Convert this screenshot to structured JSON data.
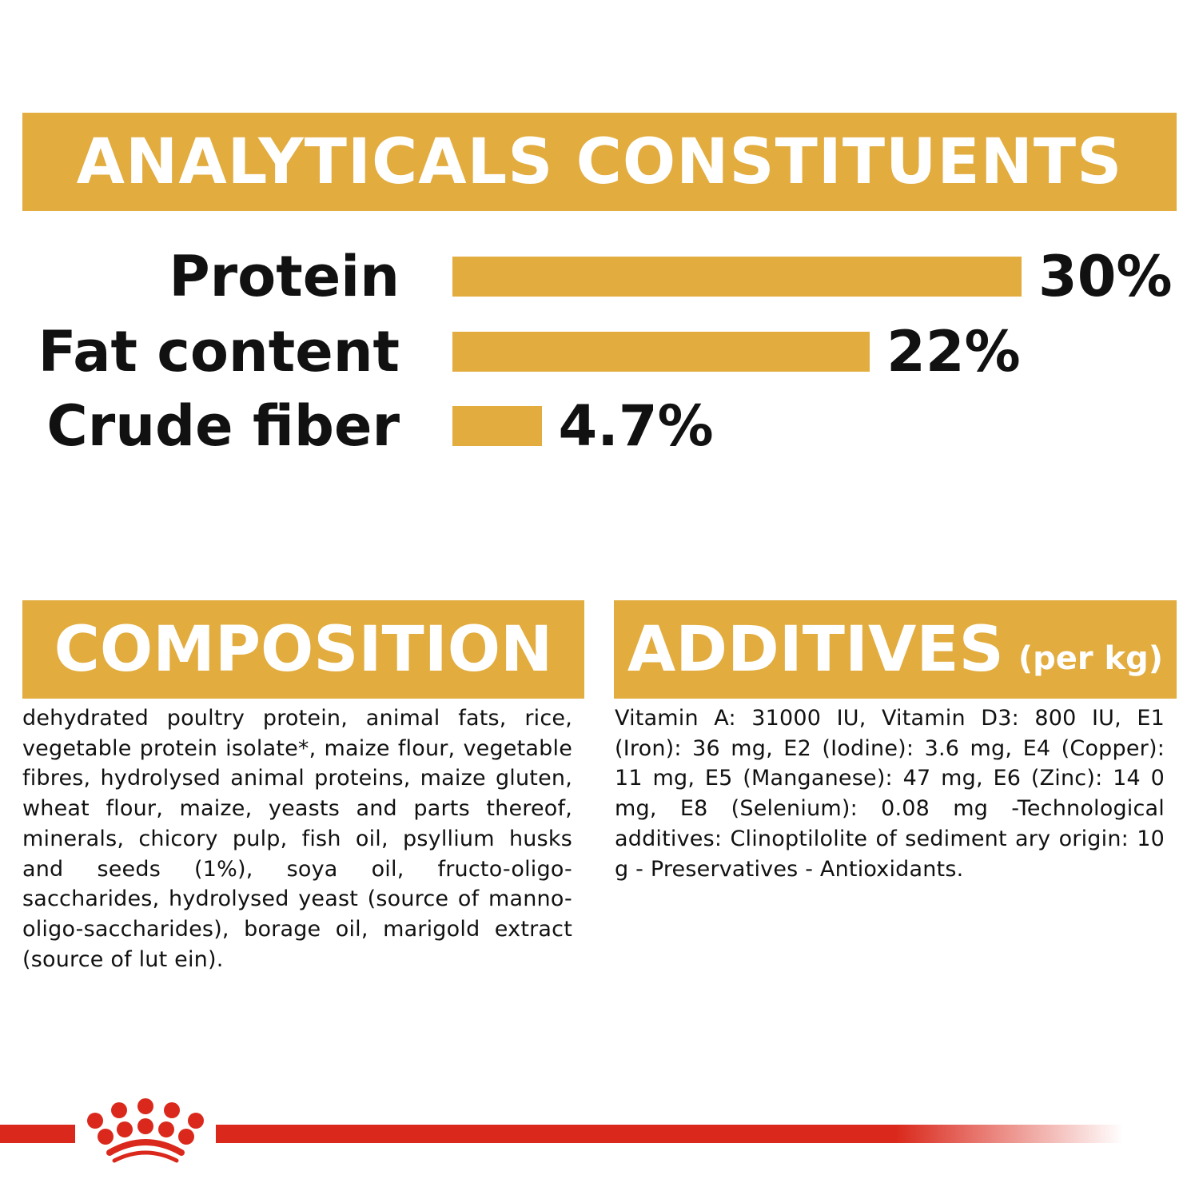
{
  "header": {
    "title": "ANALYTICALS CONSTITUENTS"
  },
  "chart_data": {
    "type": "bar",
    "orientation": "horizontal",
    "categories": [
      "Protein",
      "Fat content",
      "Crude fiber"
    ],
    "values": [
      30,
      22,
      4.7
    ],
    "value_labels": [
      "30%",
      "22%",
      "4.7%"
    ],
    "unit": "%",
    "xlim": [
      0,
      30
    ],
    "grid": false,
    "bar_color": "#e2ac3e"
  },
  "composition": {
    "title": "COMPOSITION",
    "text": "dehydrated poultry protein, animal fats, rice, vegetable protein isolate*, maize flour, vegetable fibres, hydrolysed animal proteins, maize gluten, wheat flour, maize, yeasts and parts thereof, minerals, chicory pulp, fish oil, psyllium husks and seeds (1%), soya oil, fructo-oligo-saccharides, hydrolysed yeast (source of manno-oligo-saccharides), borage oil, marigold extract (source of lut ein)."
  },
  "additives": {
    "title": "ADDITIVES",
    "subtitle": "(per kg)",
    "text": "Vitamin A: 31000 IU, Vitamin D3: 800 IU, E1 (Iron): 36 mg, E2 (Iodine): 3.6 mg, E4 (Copper): 11 mg, E5 (Manganese): 47 mg, E6 (Zinc): 14 0 mg, E8 (Selenium): 0.08 mg -Technological additives: Clinoptilolite of sediment ary origin: 10 g - Preservatives - Antioxidants."
  },
  "colors": {
    "accent": "#e2ac3e",
    "brand_red": "#da291c",
    "text": "#111111"
  },
  "footer": {
    "logo": "crown-logo"
  }
}
